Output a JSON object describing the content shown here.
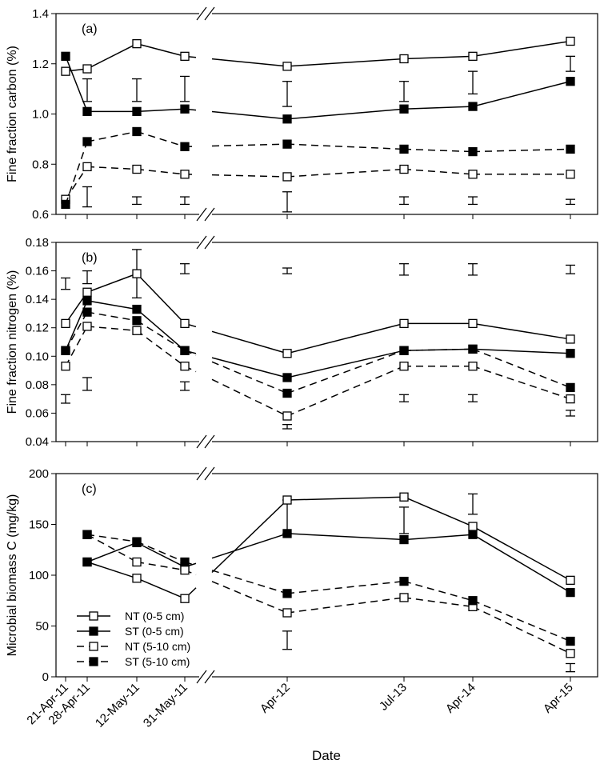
{
  "chart_data": {
    "type": "line",
    "xlabel": "Date",
    "x_categories": [
      "21-Apr-11",
      "28-Apr-11",
      "12-May-11",
      "31-May-11",
      "Apr-12",
      "Jul-13",
      "Apr-14",
      "Apr-15"
    ],
    "legend": {
      "placement": "bottom-left (panel c)",
      "entries": [
        {
          "label": "NT (0-5 cm)",
          "marker": "open-square",
          "line": "solid"
        },
        {
          "label": "ST (0-5 cm)",
          "marker": "filled-square",
          "line": "solid"
        },
        {
          "label": "NT (5-10 cm)",
          "marker": "open-square",
          "line": "dashed"
        },
        {
          "label": "ST (5-10 cm)",
          "marker": "filled-square",
          "line": "dashed"
        }
      ]
    },
    "axis_break": "between 31-May-11 and Apr-12",
    "panels": [
      {
        "panel_label": "(a)",
        "ylabel": "Fine fraction carbon (%)",
        "ylim": [
          0.6,
          1.4
        ],
        "yticks": [
          0.6,
          0.8,
          1.0,
          1.2,
          1.4
        ],
        "ytick_labels": [
          "0.6",
          "0.8",
          "1.0",
          "1.2",
          "1.4"
        ],
        "series": [
          {
            "name": "NT (0-5 cm)",
            "values": [
              1.17,
              1.18,
              1.28,
              1.23,
              1.19,
              1.22,
              1.23,
              1.29
            ]
          },
          {
            "name": "ST (0-5 cm)",
            "values": [
              1.23,
              1.01,
              1.01,
              1.02,
              0.98,
              1.02,
              1.03,
              1.13
            ]
          },
          {
            "name": "NT (5-10 cm)",
            "values": [
              0.66,
              0.79,
              0.78,
              0.76,
              0.75,
              0.78,
              0.76,
              0.76
            ]
          },
          {
            "name": "ST (5-10 cm)",
            "values": [
              0.64,
              0.89,
              0.93,
              0.87,
              0.88,
              0.86,
              0.85,
              0.86
            ]
          }
        ],
        "error_bars": [
          {
            "x": "28-Apr-11",
            "low": 1.05,
            "high": 1.14
          },
          {
            "x": "12-May-11",
            "low": 1.05,
            "high": 1.14
          },
          {
            "x": "31-May-11",
            "low": 1.05,
            "high": 1.15
          },
          {
            "x": "Apr-12",
            "low": 1.03,
            "high": 1.13
          },
          {
            "x": "Jul-13",
            "low": 1.05,
            "high": 1.13
          },
          {
            "x": "Apr-14",
            "low": 1.08,
            "high": 1.17
          },
          {
            "x": "Apr-15",
            "low": 1.17,
            "high": 1.23
          },
          {
            "x": "28-Apr-11",
            "low": 0.63,
            "high": 0.71
          },
          {
            "x": "12-May-11",
            "low": 0.64,
            "high": 0.67
          },
          {
            "x": "31-May-11",
            "low": 0.64,
            "high": 0.67
          },
          {
            "x": "Apr-12",
            "low": 0.61,
            "high": 0.69
          },
          {
            "x": "Jul-13",
            "low": 0.64,
            "high": 0.67
          },
          {
            "x": "Apr-14",
            "low": 0.64,
            "high": 0.67
          },
          {
            "x": "Apr-15",
            "low": 0.64,
            "high": 0.66
          }
        ]
      },
      {
        "panel_label": "(b)",
        "ylabel": "Fine fraction nitrogen (%)",
        "ylim": [
          0.04,
          0.18
        ],
        "yticks": [
          0.04,
          0.06,
          0.08,
          0.1,
          0.12,
          0.14,
          0.16,
          0.18
        ],
        "ytick_labels": [
          "0.04",
          "0.06",
          "0.08",
          "0.10",
          "0.12",
          "0.14",
          "0.16",
          "0.18"
        ],
        "series": [
          {
            "name": "NT (0-5 cm)",
            "values": [
              0.123,
              0.145,
              0.158,
              0.123,
              0.102,
              0.123,
              0.123,
              0.112
            ]
          },
          {
            "name": "ST (0-5 cm)",
            "values": [
              0.104,
              0.139,
              0.133,
              0.104,
              0.085,
              0.104,
              0.105,
              0.102
            ]
          },
          {
            "name": "NT (5-10 cm)",
            "values": [
              0.093,
              0.121,
              0.118,
              0.093,
              0.058,
              0.093,
              0.093,
              0.07
            ]
          },
          {
            "name": "ST (5-10 cm)",
            "values": [
              0.104,
              0.131,
              0.125,
              0.104,
              0.074,
              0.104,
              0.105,
              0.078
            ]
          }
        ],
        "error_bars": [
          {
            "x": "21-Apr-11",
            "low": 0.147,
            "high": 0.155
          },
          {
            "x": "28-Apr-11",
            "low": 0.151,
            "high": 0.16
          },
          {
            "x": "12-May-11",
            "low": 0.141,
            "high": 0.175
          },
          {
            "x": "31-May-11",
            "low": 0.158,
            "high": 0.165
          },
          {
            "x": "Apr-12",
            "low": 0.158,
            "high": 0.162
          },
          {
            "x": "Jul-13",
            "low": 0.157,
            "high": 0.165
          },
          {
            "x": "Apr-14",
            "low": 0.157,
            "high": 0.165
          },
          {
            "x": "Apr-15",
            "low": 0.158,
            "high": 0.164
          },
          {
            "x": "21-Apr-11",
            "low": 0.067,
            "high": 0.073
          },
          {
            "x": "28-Apr-11",
            "low": 0.076,
            "high": 0.085
          },
          {
            "x": "31-May-11",
            "low": 0.076,
            "high": 0.082
          },
          {
            "x": "Apr-12",
            "low": 0.049,
            "high": 0.052
          },
          {
            "x": "Jul-13",
            "low": 0.068,
            "high": 0.073
          },
          {
            "x": "Apr-14",
            "low": 0.068,
            "high": 0.073
          },
          {
            "x": "Apr-15",
            "low": 0.058,
            "high": 0.062
          }
        ]
      },
      {
        "panel_label": "(c)",
        "ylabel": "Microbial biomass C (mg/kg)",
        "ylim": [
          0,
          200
        ],
        "yticks": [
          0,
          50,
          100,
          150,
          200
        ],
        "ytick_labels": [
          "0",
          "50",
          "100",
          "150",
          "200"
        ],
        "series": [
          {
            "name": "NT (0-5 cm)",
            "values": [
              null,
              113,
              97,
              77,
              174,
              177,
              148,
              95
            ]
          },
          {
            "name": "ST (0-5 cm)",
            "values": [
              null,
              113,
              132,
              108,
              141,
              135,
              140,
              83
            ]
          },
          {
            "name": "NT (5-10 cm)",
            "values": [
              null,
              140,
              113,
              105,
              63,
              78,
              69,
              23
            ]
          },
          {
            "name": "ST (5-10 cm)",
            "values": [
              null,
              140,
              133,
              113,
              82,
              94,
              75,
              35
            ]
          }
        ],
        "error_bars": [
          {
            "x": "Apr-12",
            "low": 141,
            "high": 174
          },
          {
            "x": "Jul-13",
            "low": 141,
            "high": 167
          },
          {
            "x": "Apr-14",
            "low": 160,
            "high": 180
          },
          {
            "x": "Apr-12",
            "low": 27,
            "high": 45
          },
          {
            "x": "Apr-15",
            "low": 5,
            "high": 13
          }
        ]
      }
    ]
  }
}
